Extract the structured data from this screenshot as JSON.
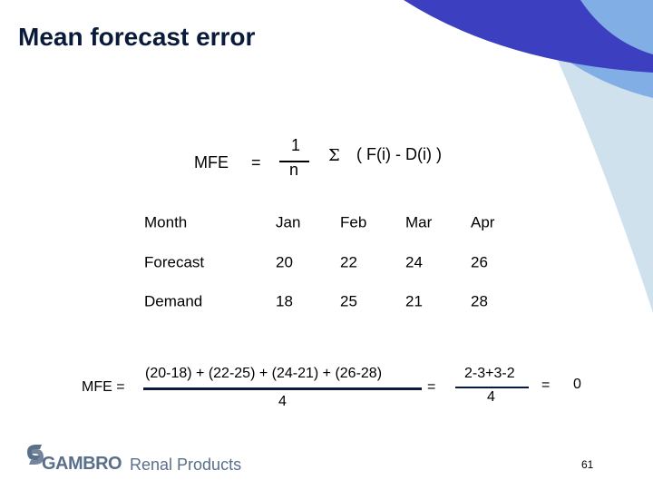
{
  "header": {
    "title": "Mean forecast error"
  },
  "formula": {
    "lhs": "MFE",
    "equals": "=",
    "numerator": "1",
    "denominator": "n",
    "sigma": "Σ",
    "term": "( F(i) - D(i) )"
  },
  "table": {
    "rows": [
      [
        "Month",
        "Jan",
        "Feb",
        "Mar",
        "Apr"
      ],
      [
        "Forecast",
        20,
        22,
        24,
        26
      ],
      [
        "Demand",
        18,
        25,
        21,
        28
      ]
    ]
  },
  "calculation": {
    "lhs": "MFE =",
    "numerator": "(20-18) + (22-25) + (24-21) + (26-28)",
    "denominator": "4",
    "equals_1": "=",
    "numerator_2": "2-3+3-2",
    "denominator_2": "4",
    "equals_2": "=",
    "result": "0"
  },
  "footer": {
    "logo_brand": "GAMBRO",
    "logo_product": "Renal Products",
    "page_number": "61"
  }
}
